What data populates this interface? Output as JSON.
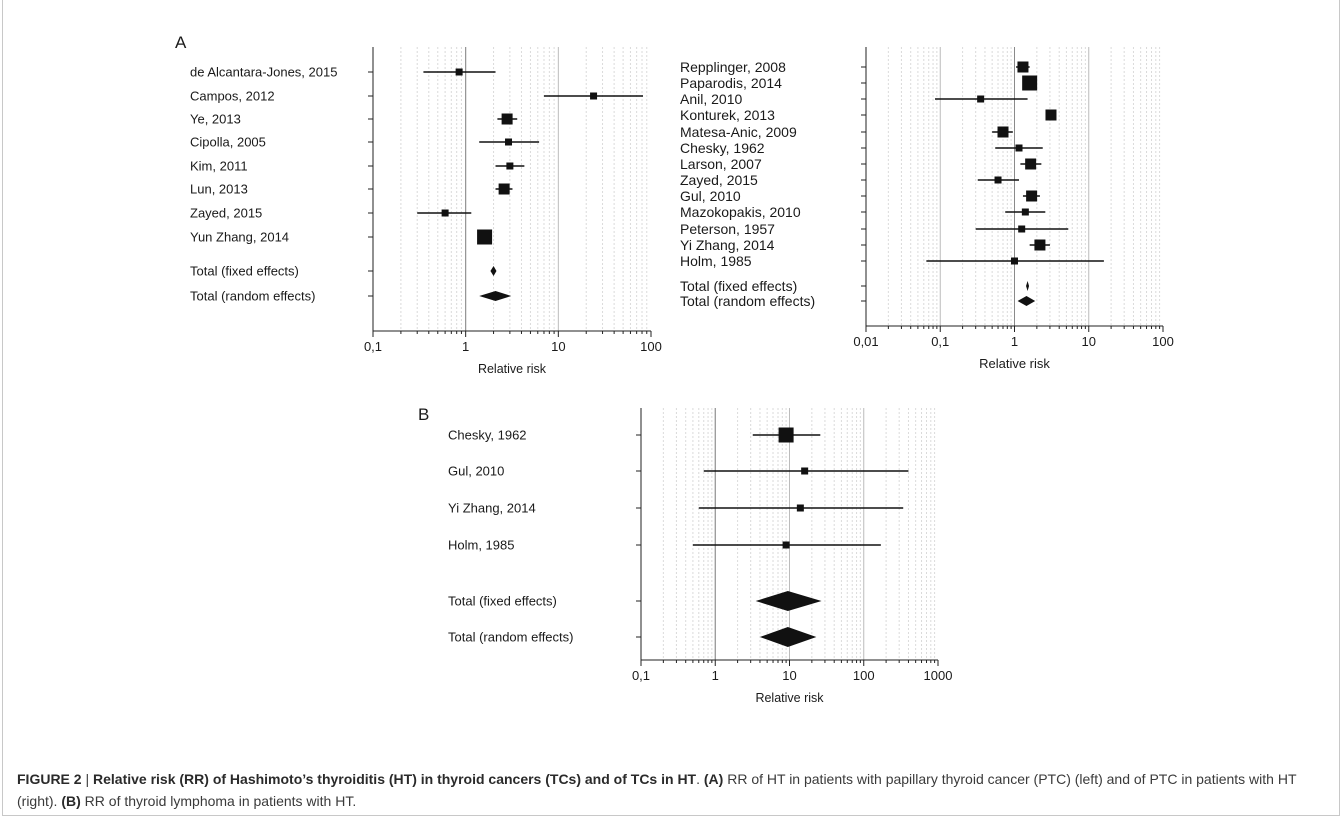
{
  "panels": [
    {
      "id": "A",
      "label": "A"
    },
    {
      "id": "B",
      "label": "B"
    }
  ],
  "caption": {
    "figure_label": "FIGURE 2",
    "separator": "|",
    "title": "Relative risk (RR) of Hashimoto’s thyroiditis (HT) in thyroid cancers (TCs) and of TCs in HT",
    "text_1": ". ",
    "ref_a": "(A)",
    "text_2": " RR of HT in patients with papillary thyroid cancer (PTC) (left) and of PTC in patients with HT (right). ",
    "ref_b": "(B)",
    "text_3": " RR of thyroid lymphoma in patients with HT."
  },
  "chart_data": [
    {
      "type": "forest",
      "panel": "A (left)",
      "xlabel": "Relative risk",
      "xscale": "log",
      "xlim": [
        0.1,
        100
      ],
      "xticks": [
        0.1,
        1,
        10,
        100
      ],
      "xtick_labels": [
        "0,1",
        "1",
        "10",
        "100"
      ],
      "grid": true,
      "studies": [
        {
          "label": "de Alcantara-Jones, 2015",
          "rr": 0.85,
          "lo": 0.35,
          "hi": 2.1,
          "size": "small"
        },
        {
          "label": "Campos, 2012",
          "rr": 24,
          "lo": 7,
          "hi": 82,
          "size": "small"
        },
        {
          "label": "Ye, 2013",
          "rr": 2.8,
          "lo": 2.2,
          "hi": 3.6,
          "size": "medium"
        },
        {
          "label": "Cipolla, 2005",
          "rr": 2.9,
          "lo": 1.4,
          "hi": 6.2,
          "size": "small"
        },
        {
          "label": "Kim, 2011",
          "rr": 3.0,
          "lo": 2.1,
          "hi": 4.3,
          "size": "small"
        },
        {
          "label": "Lun, 2013",
          "rr": 2.6,
          "lo": 2.1,
          "hi": 3.2,
          "size": "medium"
        },
        {
          "label": "Zayed, 2015",
          "rr": 0.6,
          "lo": 0.3,
          "hi": 1.15,
          "size": "small"
        },
        {
          "label": "Yun Zhang, 2014",
          "rr": 1.6,
          "lo": 1.4,
          "hi": 1.85,
          "size": "large"
        }
      ],
      "pooled": [
        {
          "label": "Total (fixed effects)",
          "rr": 2.0,
          "lo": 1.85,
          "hi": 2.15
        },
        {
          "label": "Total (random effects)",
          "rr": 2.1,
          "lo": 1.4,
          "hi": 3.1
        }
      ]
    },
    {
      "type": "forest",
      "panel": "A (right)",
      "xlabel": "Relative risk",
      "xscale": "log",
      "xlim": [
        0.01,
        100
      ],
      "xticks": [
        0.01,
        0.1,
        1,
        10,
        100
      ],
      "xtick_labels": [
        "0,01",
        "0,1",
        "1",
        "10",
        "100"
      ],
      "grid": true,
      "studies": [
        {
          "label": "Repplinger, 2008",
          "rr": 1.3,
          "lo": 1.05,
          "hi": 1.6,
          "size": "medium"
        },
        {
          "label": "Paparodis, 2014",
          "rr": 1.6,
          "lo": 1.45,
          "hi": 1.75,
          "size": "large"
        },
        {
          "label": "Anil, 2010",
          "rr": 0.35,
          "lo": 0.085,
          "hi": 1.5,
          "size": "small"
        },
        {
          "label": "Konturek, 2013",
          "rr": 3.1,
          "lo": 2.8,
          "hi": 3.5,
          "size": "medium"
        },
        {
          "label": "Matesa-Anic, 2009",
          "rr": 0.7,
          "lo": 0.5,
          "hi": 0.95,
          "size": "medium"
        },
        {
          "label": "Chesky, 1962",
          "rr": 1.15,
          "lo": 0.55,
          "hi": 2.4,
          "size": "small"
        },
        {
          "label": "Larson, 2007",
          "rr": 1.65,
          "lo": 1.2,
          "hi": 2.3,
          "size": "medium"
        },
        {
          "label": "Zayed, 2015",
          "rr": 0.6,
          "lo": 0.32,
          "hi": 1.15,
          "size": "small"
        },
        {
          "label": "Gul, 2010",
          "rr": 1.7,
          "lo": 1.3,
          "hi": 2.2,
          "size": "medium"
        },
        {
          "label": "Mazokopakis, 2010",
          "rr": 1.4,
          "lo": 0.75,
          "hi": 2.6,
          "size": "small"
        },
        {
          "label": "Peterson, 1957",
          "rr": 1.25,
          "lo": 0.3,
          "hi": 5.3,
          "size": "small"
        },
        {
          "label": "Yi Zhang, 2014",
          "rr": 2.2,
          "lo": 1.6,
          "hi": 3.0,
          "size": "medium"
        },
        {
          "label": "Holm, 1985",
          "rr": 1.0,
          "lo": 0.065,
          "hi": 16,
          "size": "small"
        }
      ],
      "pooled": [
        {
          "label": "Total (fixed effects)",
          "rr": 1.5,
          "lo": 1.43,
          "hi": 1.57
        },
        {
          "label": "Total (random effects)",
          "rr": 1.45,
          "lo": 1.1,
          "hi": 1.9
        }
      ]
    },
    {
      "type": "forest",
      "panel": "B",
      "xlabel": "Relative risk",
      "xscale": "log",
      "xlim": [
        0.1,
        1000
      ],
      "xticks": [
        0.1,
        1,
        10,
        100,
        1000
      ],
      "xtick_labels": [
        "0,1",
        "1",
        "10",
        "100",
        "1000"
      ],
      "grid": true,
      "studies": [
        {
          "label": "Chesky, 1962",
          "rr": 9,
          "lo": 3.2,
          "hi": 26,
          "size": "large"
        },
        {
          "label": "Gul, 2010",
          "rr": 16,
          "lo": 0.7,
          "hi": 400,
          "size": "small"
        },
        {
          "label": "Yi Zhang, 2014",
          "rr": 14,
          "lo": 0.6,
          "hi": 340,
          "size": "small"
        },
        {
          "label": "Holm, 1985",
          "rr": 9,
          "lo": 0.5,
          "hi": 170,
          "size": "small"
        }
      ],
      "pooled": [
        {
          "label": "Total (fixed effects)",
          "rr": 9.5,
          "lo": 3.5,
          "hi": 27
        },
        {
          "label": "Total (random effects)",
          "rr": 9.5,
          "lo": 4,
          "hi": 23
        }
      ]
    }
  ]
}
